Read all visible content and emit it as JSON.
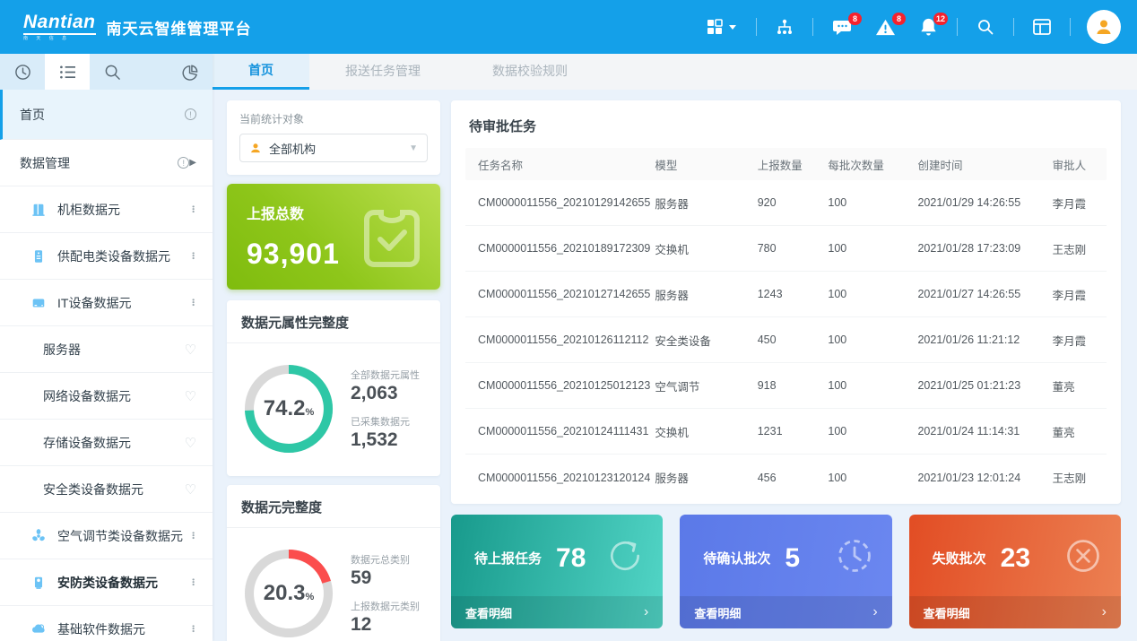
{
  "header": {
    "logo": "Nantian",
    "logo_sub": "南 天 信 息",
    "title": "南天云智维管理平台",
    "badges": {
      "message": "8",
      "alert": "8",
      "notification": "12"
    }
  },
  "tabs": [
    {
      "label": "首页",
      "active": true
    },
    {
      "label": "报送任务管理",
      "active": false
    },
    {
      "label": "数据校验规则",
      "active": false
    }
  ],
  "sidebar": {
    "items": [
      {
        "label": "首页",
        "info": true,
        "active": true
      },
      {
        "label": "数据管理",
        "info": true,
        "expand": true
      },
      {
        "label": "机柜数据元",
        "icon": "cabinet-icon",
        "menu": true
      },
      {
        "label": "供配电类设备数据元",
        "icon": "power-cabinet-icon",
        "menu": true
      },
      {
        "label": "IT设备数据元",
        "icon": "it-device-icon",
        "menu": true
      },
      {
        "label": "服务器",
        "sub": true,
        "fav": true
      },
      {
        "label": "网络设备数据元",
        "sub": true,
        "fav": true
      },
      {
        "label": "存储设备数据元",
        "sub": true,
        "fav": true
      },
      {
        "label": "安全类设备数据元",
        "sub": true,
        "fav": true
      },
      {
        "label": "空气调节类设备数据元",
        "icon": "fan-icon",
        "menu": true
      },
      {
        "label": "安防类设备数据元",
        "icon": "camera-icon",
        "menu": true,
        "bold": true
      },
      {
        "label": "基础软件数据元",
        "icon": "cloud-icon",
        "menu": true
      }
    ]
  },
  "stats": {
    "filter_label": "当前统计对象",
    "filter_value": "全部机构",
    "total_card": {
      "title": "上报总数",
      "value": "93,901"
    }
  },
  "chart_data": [
    {
      "type": "donut",
      "title": "数据元属性完整度",
      "percent": 74.2,
      "percent_text": "74.2",
      "unit": "%",
      "color": "#2ec7a6",
      "track": "#d9d9d9",
      "metrics": [
        {
          "label": "全部数据元属性",
          "value": "2,063"
        },
        {
          "label": "已采集数据元",
          "value": "1,532"
        }
      ]
    },
    {
      "type": "donut",
      "title": "数据元完整度",
      "percent": 20.3,
      "percent_text": "20.3",
      "unit": "%",
      "color": "#fb4d4d",
      "track": "#d9d9d9",
      "metrics": [
        {
          "label": "数据元总类别",
          "value": "59"
        },
        {
          "label": "上报数据元类别",
          "value": "12"
        }
      ]
    }
  ],
  "table": {
    "title": "待审批任务",
    "columns": [
      "任务名称",
      "模型",
      "上报数量",
      "每批次数量",
      "创建时间",
      "审批人"
    ],
    "rows": [
      [
        "CM0000011556_20210129142655",
        "服务器",
        "920",
        "100",
        "2021/01/29 14:26:55",
        "李月霞"
      ],
      [
        "CM0000011556_20210189172309",
        "交换机",
        "780",
        "100",
        "2021/01/28 17:23:09",
        "王志刚"
      ],
      [
        "CM0000011556_20210127142655",
        "服务器",
        "1243",
        "100",
        "2021/01/27 14:26:55",
        "李月霞"
      ],
      [
        "CM0000011556_20210126112112",
        "安全类设备",
        "450",
        "100",
        "2021/01/26 11:21:12",
        "李月霞"
      ],
      [
        "CM0000011556_20210125012123",
        "空气调节",
        "918",
        "100",
        "2021/01/25 01:21:23",
        "董亮"
      ],
      [
        "CM0000011556_20210124111431",
        "交换机",
        "1231",
        "100",
        "2021/01/24 11:14:31",
        "董亮"
      ],
      [
        "CM0000011556_20210123120124",
        "服务器",
        "456",
        "100",
        "2021/01/23 12:01:24",
        "王志刚"
      ]
    ]
  },
  "summary_cards": [
    {
      "label": "待上报任务",
      "value": "78",
      "link": "查看明细",
      "icon": "upload-circle-icon",
      "color_from": "#189a8c",
      "color_to": "#52d5c6"
    },
    {
      "label": "待确认批次",
      "value": "5",
      "link": "查看明细",
      "icon": "clock-circle-icon",
      "color_from": "#5b79e8",
      "color_to": "#6b87f0"
    },
    {
      "label": "失败批次",
      "value": "23",
      "link": "查看明细",
      "icon": "close-circle-icon",
      "color_from": "#e24d24",
      "color_to": "#ec8153"
    }
  ]
}
